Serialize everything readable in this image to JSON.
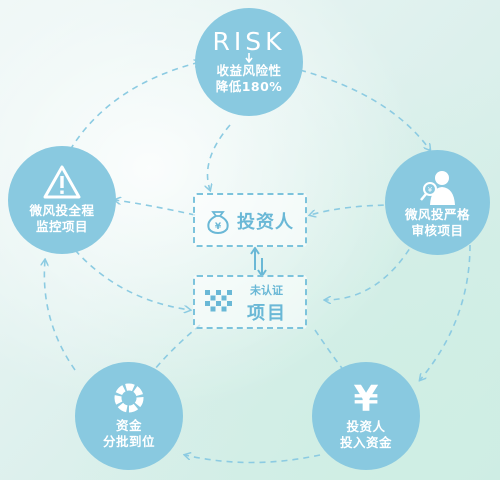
{
  "center": {
    "investor_label": "投资人",
    "project_small_label": "未认证",
    "project_label": "项目"
  },
  "nodes": {
    "risk": {
      "word": "RISK",
      "line1": "收益风险性",
      "line2": "降低180%"
    },
    "review": {
      "line1": "微风投严格",
      "line2": "审核项目"
    },
    "invest": {
      "symbol": "¥",
      "line1": "投资人",
      "line2": "投入资金"
    },
    "distribute": {
      "line1": "资金",
      "line2": "分批到位"
    },
    "monitor": {
      "line1": "微风投全程",
      "line2": "监控项目"
    }
  },
  "colors": {
    "node_fill": "#89c9e0",
    "dashed_line": "#8ccbe2",
    "box_text": "#6ab8d6"
  }
}
